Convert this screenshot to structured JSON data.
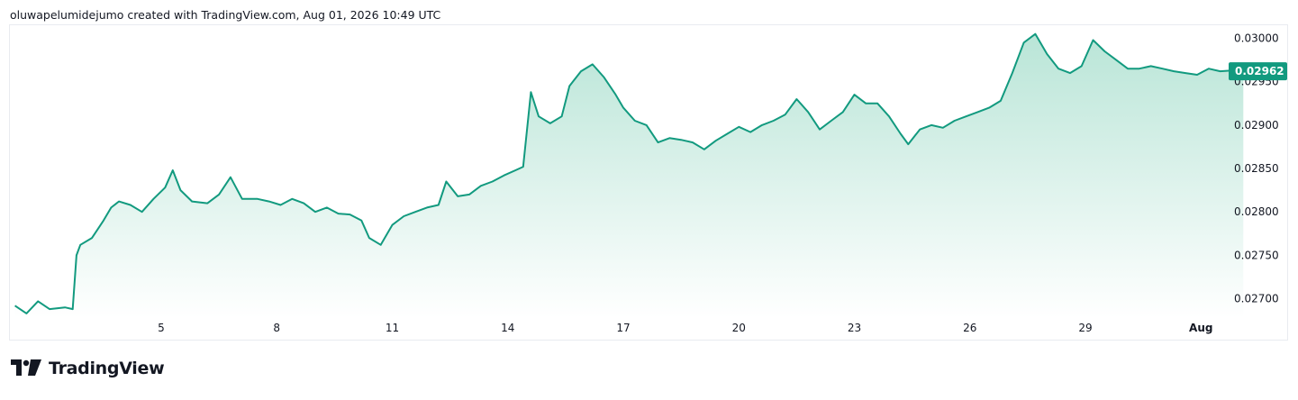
{
  "header": {
    "text": "oluwapelumidejumo created with TradingView.com, Aug 01, 2026 10:49 UTC"
  },
  "brand": {
    "name": "TradingView",
    "logo_icon": "tradingview-logo-icon"
  },
  "colors": {
    "line": "#129a7f",
    "area_top": "#b9e5d7",
    "area_bottom": "#ffffff",
    "badge": "#129a7f"
  },
  "chart_data": {
    "type": "area",
    "x_ticks": [
      "5",
      "8",
      "11",
      "14",
      "17",
      "20",
      "23",
      "26",
      "29",
      "Aug"
    ],
    "y_ticks": [
      "0.02700",
      "0.02750",
      "0.02800",
      "0.02850",
      "0.02900",
      "0.02950",
      "0.03000"
    ],
    "ylim": [
      0.02685,
      0.03013
    ],
    "last_value": "0.02962",
    "grid": false,
    "series": [
      {
        "points": [
          [
            1.2,
            0.02692
          ],
          [
            1.5,
            0.02683
          ],
          [
            1.8,
            0.02697
          ],
          [
            2.1,
            0.02688
          ],
          [
            2.5,
            0.0269
          ],
          [
            2.7,
            0.02688
          ],
          [
            2.8,
            0.0275
          ],
          [
            2.9,
            0.02762
          ],
          [
            3.2,
            0.0277
          ],
          [
            3.5,
            0.0279
          ],
          [
            3.7,
            0.02805
          ],
          [
            3.9,
            0.02812
          ],
          [
            4.2,
            0.02808
          ],
          [
            4.5,
            0.028
          ],
          [
            4.8,
            0.02815
          ],
          [
            5.1,
            0.02828
          ],
          [
            5.3,
            0.02848
          ],
          [
            5.5,
            0.02825
          ],
          [
            5.8,
            0.02812
          ],
          [
            6.2,
            0.0281
          ],
          [
            6.5,
            0.0282
          ],
          [
            6.8,
            0.0284
          ],
          [
            7.1,
            0.02815
          ],
          [
            7.5,
            0.02815
          ],
          [
            7.8,
            0.02812
          ],
          [
            8.1,
            0.02808
          ],
          [
            8.4,
            0.02815
          ],
          [
            8.7,
            0.0281
          ],
          [
            9.0,
            0.028
          ],
          [
            9.3,
            0.02805
          ],
          [
            9.6,
            0.02798
          ],
          [
            9.9,
            0.02797
          ],
          [
            10.2,
            0.0279
          ],
          [
            10.4,
            0.0277
          ],
          [
            10.7,
            0.02762
          ],
          [
            11.0,
            0.02785
          ],
          [
            11.3,
            0.02795
          ],
          [
            11.6,
            0.028
          ],
          [
            11.9,
            0.02805
          ],
          [
            12.2,
            0.02808
          ],
          [
            12.4,
            0.02835
          ],
          [
            12.7,
            0.02818
          ],
          [
            13.0,
            0.0282
          ],
          [
            13.3,
            0.0283
          ],
          [
            13.6,
            0.02835
          ],
          [
            13.9,
            0.02842
          ],
          [
            14.2,
            0.02848
          ],
          [
            14.4,
            0.02852
          ],
          [
            14.5,
            0.02895
          ],
          [
            14.6,
            0.02938
          ],
          [
            14.8,
            0.0291
          ],
          [
            15.1,
            0.02902
          ],
          [
            15.4,
            0.0291
          ],
          [
            15.6,
            0.02945
          ],
          [
            15.9,
            0.02962
          ],
          [
            16.2,
            0.0297
          ],
          [
            16.5,
            0.02955
          ],
          [
            16.8,
            0.02935
          ],
          [
            17.0,
            0.0292
          ],
          [
            17.3,
            0.02905
          ],
          [
            17.6,
            0.029
          ],
          [
            17.9,
            0.0288
          ],
          [
            18.2,
            0.02885
          ],
          [
            18.5,
            0.02883
          ],
          [
            18.8,
            0.0288
          ],
          [
            19.1,
            0.02872
          ],
          [
            19.4,
            0.02882
          ],
          [
            19.7,
            0.0289
          ],
          [
            20.0,
            0.02898
          ],
          [
            20.3,
            0.02892
          ],
          [
            20.6,
            0.029
          ],
          [
            20.9,
            0.02905
          ],
          [
            21.2,
            0.02912
          ],
          [
            21.5,
            0.0293
          ],
          [
            21.8,
            0.02915
          ],
          [
            22.1,
            0.02895
          ],
          [
            22.4,
            0.02905
          ],
          [
            22.7,
            0.02915
          ],
          [
            23.0,
            0.02935
          ],
          [
            23.3,
            0.02925
          ],
          [
            23.6,
            0.02925
          ],
          [
            23.9,
            0.0291
          ],
          [
            24.2,
            0.0289
          ],
          [
            24.4,
            0.02878
          ],
          [
            24.7,
            0.02895
          ],
          [
            25.0,
            0.029
          ],
          [
            25.3,
            0.02897
          ],
          [
            25.6,
            0.02905
          ],
          [
            25.9,
            0.0291
          ],
          [
            26.2,
            0.02915
          ],
          [
            26.5,
            0.0292
          ],
          [
            26.8,
            0.02928
          ],
          [
            27.1,
            0.0296
          ],
          [
            27.4,
            0.02995
          ],
          [
            27.7,
            0.03005
          ],
          [
            28.0,
            0.02982
          ],
          [
            28.3,
            0.02965
          ],
          [
            28.6,
            0.0296
          ],
          [
            28.9,
            0.02968
          ],
          [
            29.2,
            0.02998
          ],
          [
            29.5,
            0.02985
          ],
          [
            29.8,
            0.02975
          ],
          [
            30.1,
            0.02965
          ],
          [
            30.4,
            0.02965
          ],
          [
            30.7,
            0.02968
          ],
          [
            31.0,
            0.02965
          ],
          [
            31.3,
            0.02962
          ],
          [
            31.6,
            0.0296
          ],
          [
            31.9,
            0.02958
          ],
          [
            32.2,
            0.02965
          ],
          [
            32.5,
            0.02962
          ],
          [
            32.8,
            0.02963
          ],
          [
            33.1,
            0.02962
          ]
        ]
      }
    ]
  }
}
